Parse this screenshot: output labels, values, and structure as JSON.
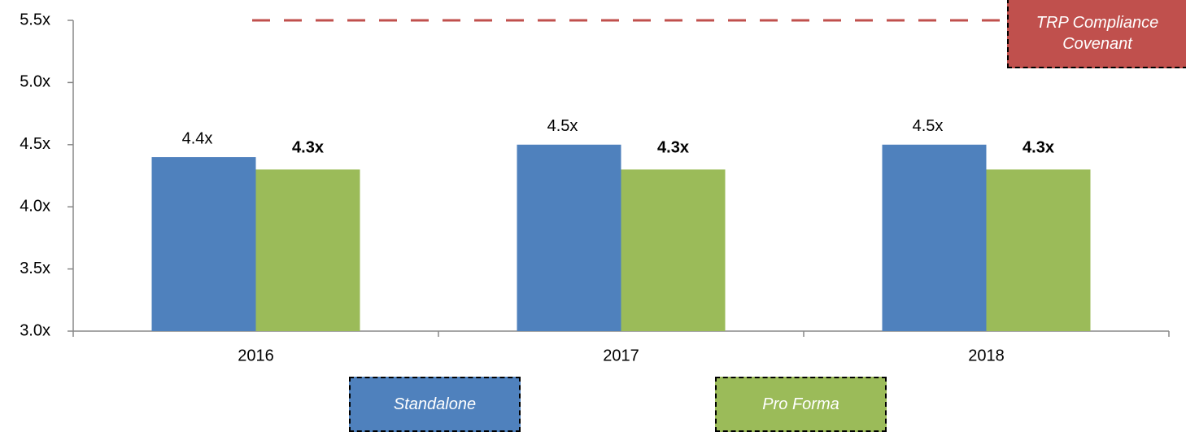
{
  "chart_data": {
    "type": "bar",
    "categories": [
      "2016",
      "2017",
      "2018"
    ],
    "series": [
      {
        "name": "Standalone",
        "color": "#4f81bd",
        "values": [
          4.4,
          4.5,
          4.5
        ],
        "value_labels": [
          "4.4x",
          "4.5x",
          "4.5x"
        ]
      },
      {
        "name": "Pro Forma",
        "color": "#9bbb59",
        "values": [
          4.3,
          4.3,
          4.3
        ],
        "value_labels": [
          "4.3x",
          "4.3x",
          "4.3x"
        ]
      }
    ],
    "ylim": [
      3.0,
      5.5
    ],
    "yticks": [
      {
        "value": 3.0,
        "label": "3.0x"
      },
      {
        "value": 3.5,
        "label": "3.5x"
      },
      {
        "value": 4.0,
        "label": "4.0x"
      },
      {
        "value": 4.5,
        "label": "4.5x"
      },
      {
        "value": 5.0,
        "label": "5.0x"
      },
      {
        "value": 5.5,
        "label": "5.5x"
      }
    ],
    "covenant": {
      "value": 5.5,
      "label": "TRP Compliance Covenant",
      "color": "#c0504d"
    },
    "legend": "bottom"
  }
}
